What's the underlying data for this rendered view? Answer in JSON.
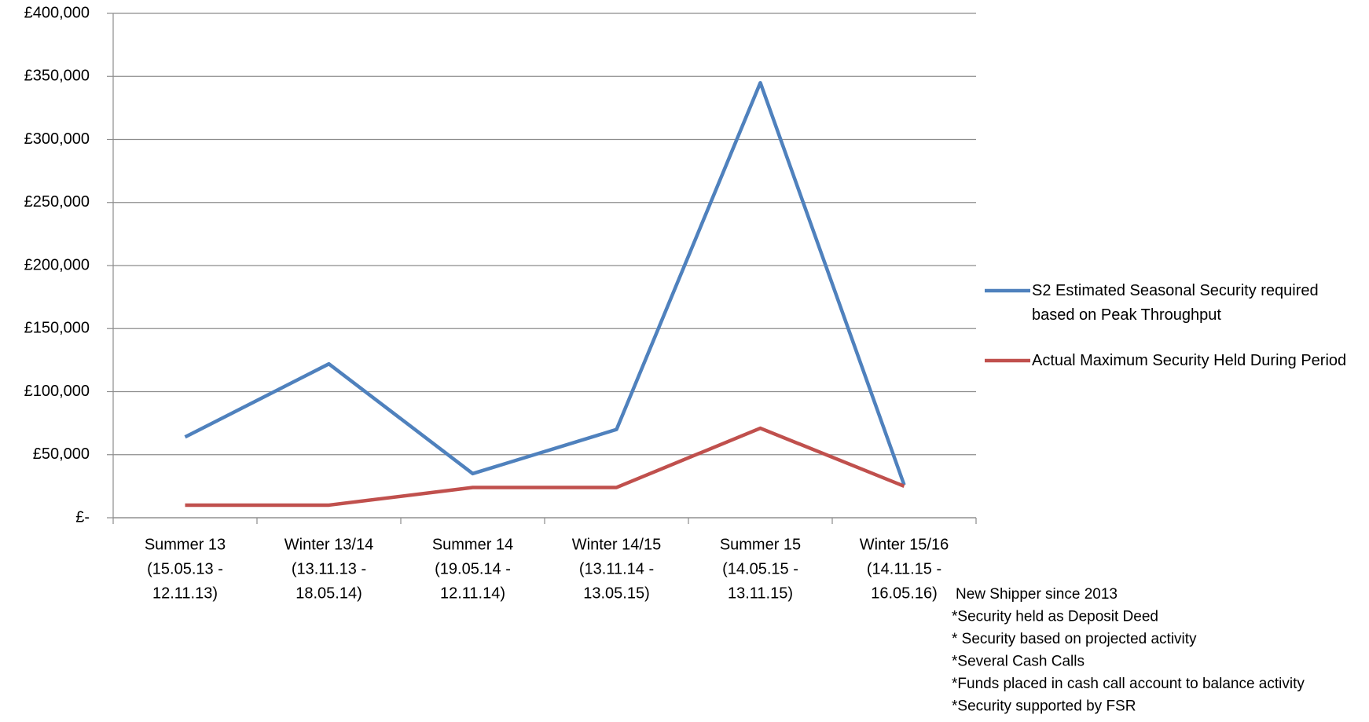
{
  "chart_data": {
    "type": "line",
    "categories": [
      [
        "Summer 13",
        "(15.05.13 -",
        "12.11.13)"
      ],
      [
        "Winter 13/14",
        "(13.11.13 -",
        "18.05.14)"
      ],
      [
        "Summer 14",
        "(19.05.14 -",
        "12.11.14)"
      ],
      [
        "Winter 14/15",
        "(13.11.14 -",
        "13.05.15)"
      ],
      [
        "Summer 15",
        "(14.05.15 -",
        "13.11.15)"
      ],
      [
        "Winter 15/16",
        "(14.11.15 -",
        "16.05.16)"
      ]
    ],
    "series": [
      {
        "name": "S2 Estimated Seasonal Security required based on Peak Throughput",
        "color": "#4f81bd",
        "values": [
          64000,
          122000,
          35000,
          70000,
          345000,
          26000
        ]
      },
      {
        "name": "Actual Maximum Security Held During Period",
        "color": "#c0504d",
        "values": [
          10000,
          10000,
          24000,
          24000,
          71000,
          25000
        ]
      }
    ],
    "ylim": [
      0,
      400000
    ],
    "yticks": [
      {
        "value": 0,
        "label": "£-"
      },
      {
        "value": 50000,
        "label": "£50,000"
      },
      {
        "value": 100000,
        "label": "£100,000"
      },
      {
        "value": 150000,
        "label": "£150,000"
      },
      {
        "value": 200000,
        "label": "£200,000"
      },
      {
        "value": 250000,
        "label": "£250,000"
      },
      {
        "value": 300000,
        "label": "£300,000"
      },
      {
        "value": 350000,
        "label": "£350,000"
      },
      {
        "value": 400000,
        "label": "£400,000"
      }
    ],
    "grid": true,
    "legend": "right",
    "annotations": [
      "New Shipper since 2013",
      "*Security held as Deposit Deed",
      "* Security based on projected activity",
      "*Several Cash Calls",
      "*Funds placed in cash call account to balance activity",
      "*Security supported by FSR"
    ]
  }
}
